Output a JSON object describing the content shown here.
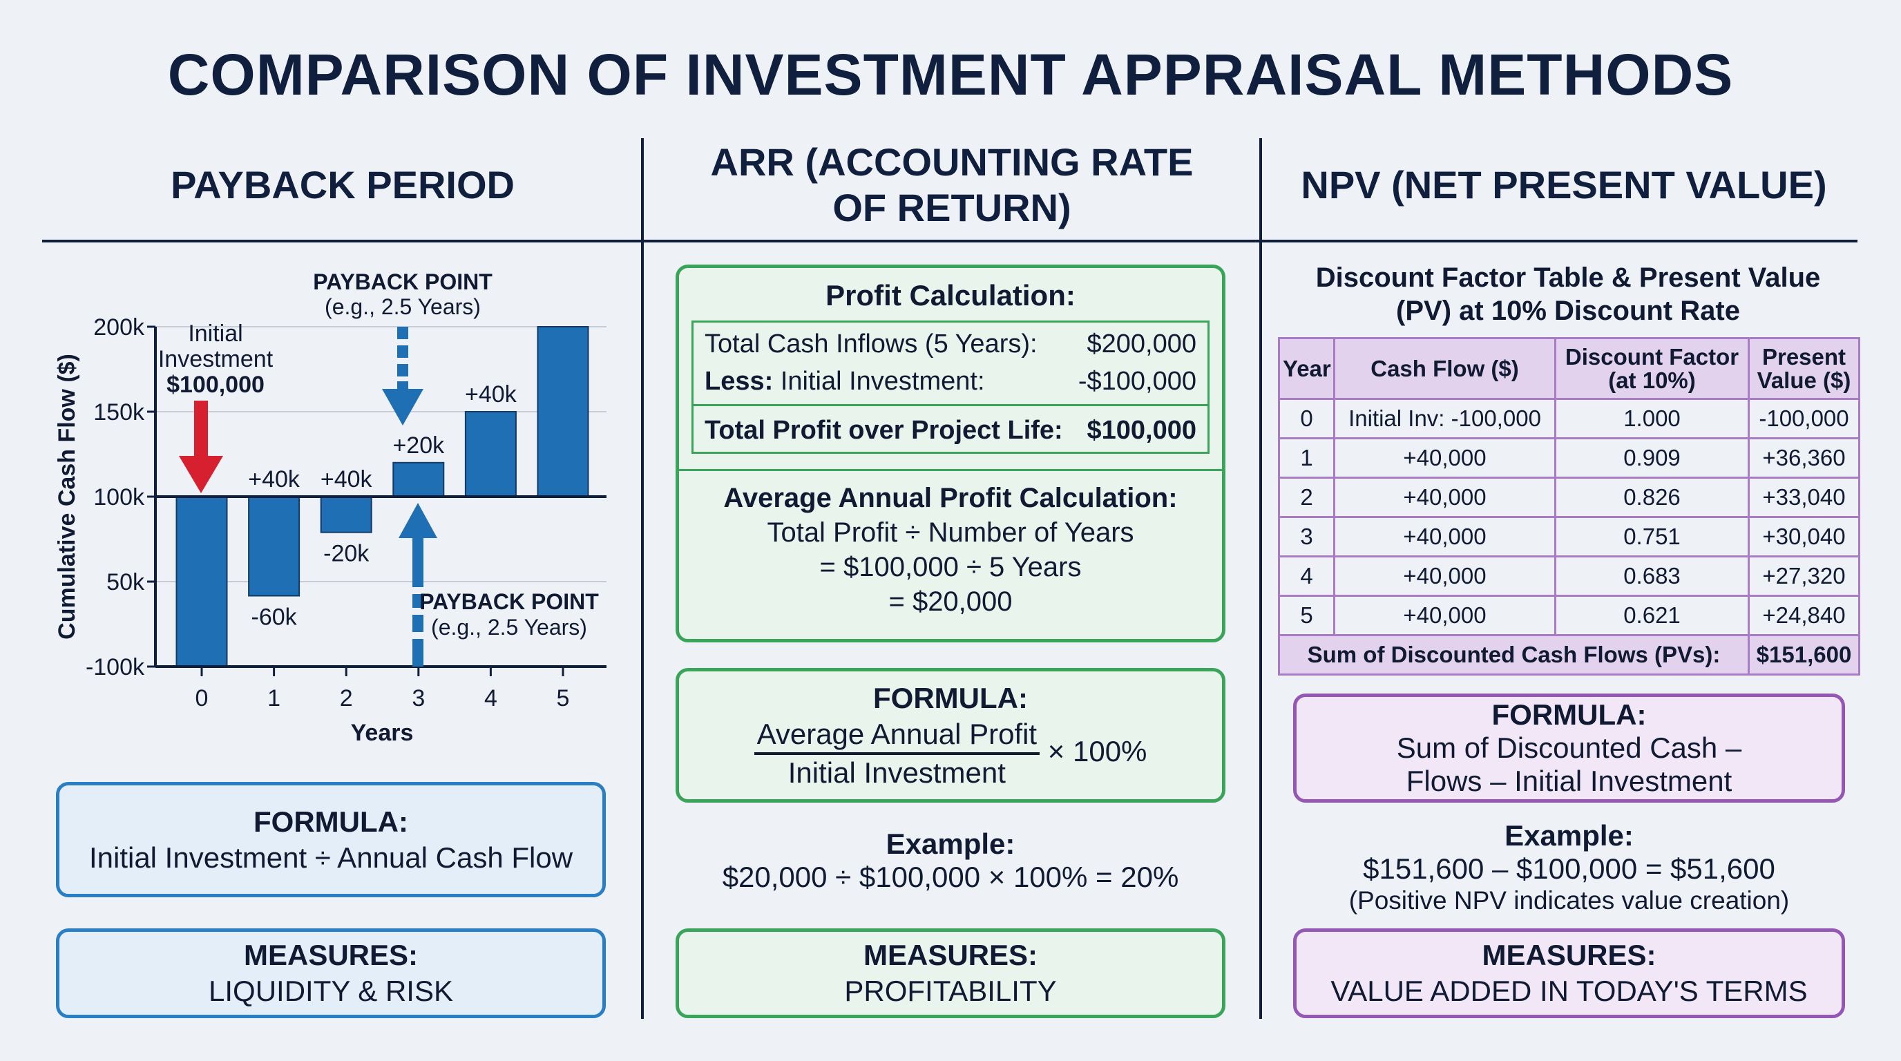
{
  "title": "COMPARISON OF INVESTMENT APPRAISAL METHODS",
  "colors": {
    "navy": "#0f1f3d",
    "bar": "#1f6fb5",
    "red_arrow": "#d62030",
    "blue": "#2a7fc4",
    "green": "#3aa55a",
    "purple": "#9557b4"
  },
  "payback": {
    "heading": "PAYBACK PERIOD",
    "formula_label": "FORMULA:",
    "formula": "Initial Investment ÷ Annual Cash Flow",
    "measures_label": "MEASURES:",
    "measures": "LIQUIDITY & RISK"
  },
  "chart_data": {
    "type": "bar",
    "xlabel": "Years",
    "ylabel": "Cumulative Cash Flow ($)",
    "categories": [
      "0",
      "1",
      "2",
      "3",
      "4",
      "5"
    ],
    "yticks": [
      "-100k",
      "50k",
      "100k",
      "150k",
      "200k"
    ],
    "ytick_values": [
      -100000,
      50000,
      100000,
      150000,
      200000
    ],
    "baseline": 100000,
    "bar_ends": [
      -100000,
      25000,
      79000,
      120000,
      150000,
      200000
    ],
    "bar_labels": [
      {
        "bar": 1,
        "above": "+40k",
        "below": "-60k"
      },
      {
        "bar": 2,
        "above": "+40k",
        "below": "-20k"
      },
      {
        "bar": 3,
        "above": "+20k",
        "below": ""
      },
      {
        "bar": 4,
        "above": "+40k",
        "below": ""
      }
    ],
    "annotations": {
      "initial": [
        "Initial",
        "Investment",
        "$100,000"
      ],
      "payback_top": [
        "PAYBACK POINT",
        "(e.g., 2.5 Years)"
      ],
      "payback_bottom": [
        "PAYBACK POINT",
        "(e.g., 2.5 Years)"
      ]
    },
    "grid": true
  },
  "arr": {
    "heading_line1": "ARR (ACCOUNTING RATE",
    "heading_line2": "OF RETURN)",
    "profit_title": "Profit Calculation:",
    "rows": [
      {
        "label": "Total Cash Inflows (5 Years):",
        "value": "$200,000"
      },
      {
        "label_bold": "Less:",
        "label": " Initial Investment:",
        "value": "-$100,000"
      }
    ],
    "total_label": "Total Profit over Project Life:",
    "total_value": "$100,000",
    "avg_title": "Average Annual Profit Calculation:",
    "avg_lines": [
      "Total Profit ÷ Number of Years",
      "= $100,000 ÷ 5 Years",
      "= $20,000"
    ],
    "formula_label": "FORMULA:",
    "formula_num": "Average Annual Profit",
    "formula_den": "Initial Investment",
    "formula_mult": "× 100%",
    "example_label": "Example:",
    "example": "$20,000 ÷ $100,000 × 100% = 20%",
    "measures_label": "MEASURES:",
    "measures": "PROFITABILITY"
  },
  "npv": {
    "heading": "NPV (NET PRESENT VALUE)",
    "table_title_1": "Discount Factor Table & Present Value",
    "table_title_2": "(PV) at 10% Discount Rate",
    "headers": [
      "Year",
      "Cash Flow ($)",
      "Discount Factor (at 10%)",
      "Present Value ($)"
    ],
    "rows": [
      [
        "0",
        "Initial Inv: -100,000",
        "1.000",
        "-100,000"
      ],
      [
        "1",
        "+40,000",
        "0.909",
        "+36,360"
      ],
      [
        "2",
        "+40,000",
        "0.826",
        "+33,040"
      ],
      [
        "3",
        "+40,000",
        "0.751",
        "+30,040"
      ],
      [
        "4",
        "+40,000",
        "0.683",
        "+27,320"
      ],
      [
        "5",
        "+40,000",
        "0.621",
        "+24,840"
      ]
    ],
    "sum_label": "Sum of Discounted Cash Flows (PVs):",
    "sum_value": "$151,600",
    "formula_label": "FORMULA:",
    "formula_1": "Sum of Discounted Cash –",
    "formula_2": "Flows – Initial Investment",
    "example_label": "Example:",
    "example": "$151,600 – $100,000 = $51,600",
    "example_note": "(Positive NPV indicates value creation)",
    "measures_label": "MEASURES:",
    "measures": "VALUE ADDED IN TODAY'S TERMS"
  }
}
